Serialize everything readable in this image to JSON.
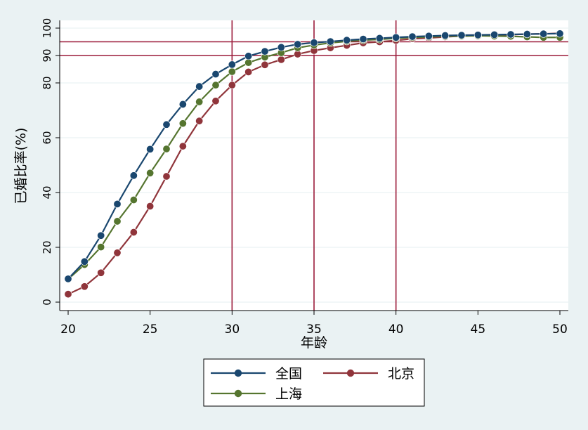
{
  "chart_data": {
    "type": "line",
    "xlabel": "年龄",
    "ylabel": "已婚比率(%)",
    "xlim": [
      20,
      50
    ],
    "ylim": [
      0,
      100
    ],
    "x_ticks": [
      "20",
      "25",
      "30",
      "35",
      "40",
      "45",
      "50"
    ],
    "y_ticks": [
      "0",
      "20",
      "40",
      "60",
      "80",
      "90",
      "100"
    ],
    "grid": true,
    "legend_position": "bottom",
    "reference_lines": {
      "horizontal": [
        90,
        95
      ],
      "vertical": [
        30,
        35,
        40
      ],
      "color": "#9b1b3a"
    },
    "x": [
      20,
      21,
      22,
      23,
      24,
      25,
      26,
      27,
      28,
      29,
      30,
      31,
      32,
      33,
      34,
      35,
      36,
      37,
      38,
      39,
      40,
      41,
      42,
      43,
      44,
      45,
      46,
      47,
      48,
      49,
      50
    ],
    "series": [
      {
        "name": "全国",
        "color": "#1a476f",
        "values": [
          8.5,
          14.8,
          24.3,
          35.8,
          46.2,
          55.8,
          64.8,
          72.2,
          78.7,
          83.2,
          86.7,
          89.8,
          91.5,
          93.0,
          94.1,
          94.7,
          95.1,
          95.6,
          96.0,
          96.3,
          96.6,
          96.9,
          97.1,
          97.3,
          97.4,
          97.5,
          97.6,
          97.7,
          97.8,
          97.9,
          98.0
        ]
      },
      {
        "name": "北京",
        "color": "#90353b",
        "values": [
          2.9,
          5.7,
          10.7,
          18.0,
          25.5,
          35.0,
          45.9,
          56.9,
          66.1,
          73.4,
          79.2,
          84.0,
          86.6,
          88.5,
          90.5,
          91.8,
          92.8,
          93.7,
          94.6,
          95.0,
          95.5,
          96.1,
          96.4,
          96.8,
          97.1,
          97.3,
          97.5,
          97.6,
          97.8,
          97.9,
          98.1
        ]
      },
      {
        "name": "上海",
        "color": "#55752f",
        "values": [
          8.4,
          13.7,
          20.1,
          29.5,
          37.3,
          47.1,
          55.9,
          65.2,
          73.1,
          79.2,
          84.1,
          87.4,
          89.4,
          91.0,
          92.8,
          93.8,
          94.6,
          95.2,
          95.6,
          95.9,
          96.3,
          96.6,
          96.8,
          97.0,
          97.1,
          97.2,
          97.1,
          97.0,
          96.8,
          96.6,
          96.6
        ]
      }
    ]
  },
  "colors": {
    "background": "#eaf2f3",
    "plot_background": "#ffffff",
    "grid": "#eaf2f3",
    "reference": "#9b1b3a"
  }
}
